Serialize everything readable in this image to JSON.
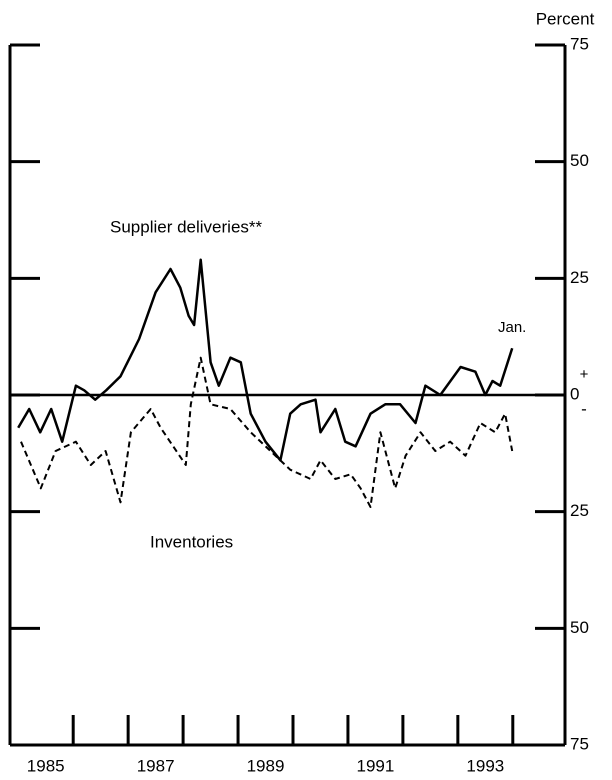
{
  "chart_data": {
    "type": "line",
    "y_axis_label": "Percent",
    "annotations": [
      "Supplier deliveries**",
      "Inventories",
      "Jan.",
      "+",
      "-"
    ],
    "xlim": [
      1984.85,
      1994.95
    ],
    "xticks": [
      {
        "value": 1985.5,
        "label": "1985"
      },
      {
        "value": 1987.5,
        "label": "1987"
      },
      {
        "value": 1989.5,
        "label": "1989"
      },
      {
        "value": 1991.5,
        "label": "1991"
      },
      {
        "value": 1993.5,
        "label": "1993"
      }
    ],
    "x_minor_ticks": [
      1986,
      1987,
      1988,
      1989,
      1990,
      1991,
      1992,
      1993,
      1994
    ],
    "ylim": [
      -75,
      75
    ],
    "yticks": [
      75,
      50,
      25,
      0,
      {
        "value": -25,
        "label": "25"
      },
      {
        "value": -50,
        "label": "50"
      },
      {
        "value": -75,
        "label": "75"
      }
    ],
    "series": [
      {
        "name": "Supplier deliveries",
        "color": "#000000",
        "dashed": false,
        "x": [
          1985.0,
          1985.2,
          1985.4,
          1985.6,
          1985.8,
          1986.05,
          1986.2,
          1986.4,
          1986.6,
          1986.86,
          1987.2,
          1987.5,
          1987.77,
          1987.95,
          1988.1,
          1988.2,
          1988.32,
          1988.5,
          1988.65,
          1988.86,
          1989.05,
          1989.23,
          1989.5,
          1989.77,
          1989.95,
          1990.14,
          1990.41,
          1990.5,
          1990.77,
          1990.95,
          1991.14,
          1991.41,
          1991.68,
          1991.95,
          1992.23,
          1992.41,
          1992.68,
          1993.05,
          1993.32,
          1993.5,
          1993.63,
          1993.77,
          1993.99
        ],
        "values": [
          -7,
          -3,
          -8,
          -3,
          -10,
          2,
          1,
          -1,
          1,
          4,
          12,
          22,
          27,
          23,
          17,
          15,
          29,
          7,
          2,
          8,
          7,
          -4,
          -10,
          -14,
          -4,
          -2,
          -1,
          -8,
          -3,
          -10,
          -11,
          -4,
          -2,
          -2,
          -6,
          2,
          0,
          6,
          5,
          0,
          3,
          2,
          10
        ]
      },
      {
        "name": "Inventories",
        "color": "#000000",
        "dashed": true,
        "x": [
          1985.05,
          1985.41,
          1985.68,
          1986.05,
          1986.32,
          1986.59,
          1986.86,
          1987.05,
          1987.41,
          1987.59,
          1988.05,
          1988.14,
          1988.32,
          1988.5,
          1988.86,
          1989.23,
          1989.59,
          1989.95,
          1990.32,
          1990.5,
          1990.77,
          1991.05,
          1991.23,
          1991.41,
          1991.59,
          1991.86,
          1992.05,
          1992.32,
          1992.59,
          1992.86,
          1993.14,
          1993.41,
          1993.68,
          1993.86,
          1993.99
        ],
        "values": [
          -10,
          -20,
          -12,
          -10,
          -15,
          -12,
          -23,
          -8,
          -3,
          -7,
          -15,
          -2,
          8,
          -2,
          -3,
          -8,
          -12,
          -16,
          -18,
          -14,
          -18,
          -17,
          -20,
          -24,
          -8,
          -20,
          -13,
          -8,
          -12,
          -10,
          -13,
          -6,
          -8,
          -4,
          -12
        ]
      }
    ]
  }
}
